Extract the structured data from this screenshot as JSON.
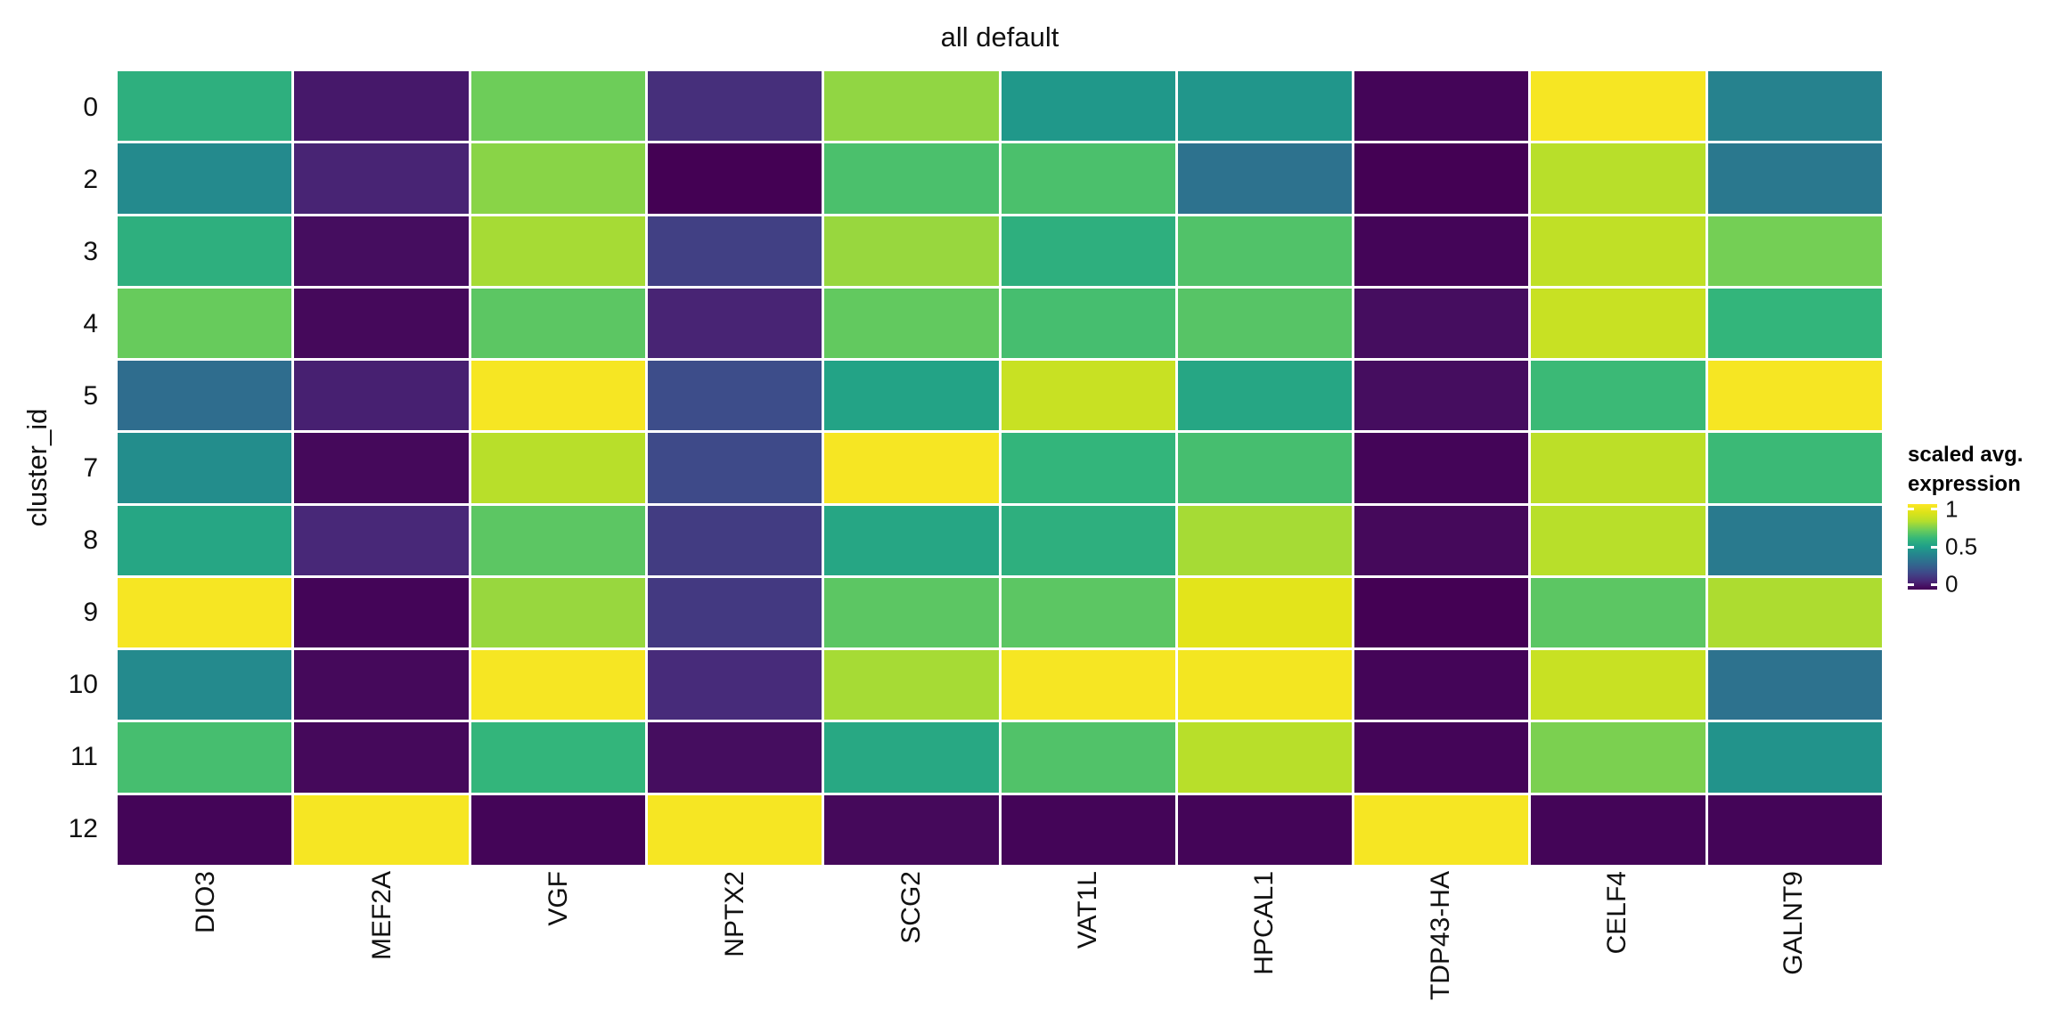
{
  "title": "all default",
  "y_axis": {
    "label": "cluster_id",
    "tick_labels": [
      "0",
      "2",
      "3",
      "4",
      "5",
      "7",
      "8",
      "9",
      "10",
      "11",
      "12"
    ]
  },
  "x_axis": {
    "tick_labels": [
      "DIO3",
      "MEF2A",
      "VGF",
      "NPTX2",
      "SCG2",
      "VAT1L",
      "HPCAL1",
      "TDP43-HA",
      "CELF4",
      "GALNT9"
    ]
  },
  "legend": {
    "title_line1": "scaled avg.",
    "title_line2": "expression",
    "tick_labels": [
      "1",
      "0.5",
      "0"
    ],
    "tick_positions": [
      0.06,
      0.5,
      0.94
    ]
  },
  "colors": {
    "background": "#ffffff",
    "text": "#111111",
    "colormap": "viridis",
    "viridis_anchors": [
      "#440154",
      "#482878",
      "#3e4a89",
      "#31688e",
      "#26828e",
      "#1f9e89",
      "#35b779",
      "#6dcd59",
      "#b4de2c",
      "#dce319",
      "#fde725"
    ]
  },
  "chart_data": {
    "type": "heatmap",
    "title": "all default",
    "xlabel": "",
    "ylabel": "cluster_id",
    "legend_title": "scaled avg. expression",
    "colorscale": "viridis",
    "domain": [
      0,
      1
    ],
    "grid": false,
    "legend_position": "right",
    "columns": [
      "DIO3",
      "MEF2A",
      "VGF",
      "NPTX2",
      "SCG2",
      "VAT1L",
      "HPCAL1",
      "TDP43-HA",
      "CELF4",
      "GALNT9"
    ],
    "rows": [
      "0",
      "2",
      "3",
      "4",
      "5",
      "7",
      "8",
      "9",
      "10",
      "11",
      "12"
    ],
    "values": [
      [
        0.57,
        0.06,
        0.7,
        0.12,
        0.75,
        0.48,
        0.47,
        0.01,
        0.98,
        0.4
      ],
      [
        0.43,
        0.09,
        0.74,
        0.0,
        0.64,
        0.64,
        0.34,
        0.0,
        0.81,
        0.36
      ],
      [
        0.57,
        0.03,
        0.78,
        0.17,
        0.76,
        0.57,
        0.65,
        0.01,
        0.83,
        0.71
      ],
      [
        0.69,
        0.02,
        0.67,
        0.09,
        0.68,
        0.63,
        0.66,
        0.03,
        0.85,
        0.59
      ],
      [
        0.32,
        0.08,
        0.98,
        0.21,
        0.52,
        0.85,
        0.53,
        0.03,
        0.61,
        0.98
      ],
      [
        0.44,
        0.02,
        0.81,
        0.2,
        0.98,
        0.59,
        0.63,
        0.01,
        0.82,
        0.61
      ],
      [
        0.53,
        0.1,
        0.67,
        0.16,
        0.53,
        0.57,
        0.78,
        0.02,
        0.81,
        0.37
      ],
      [
        0.98,
        0.01,
        0.76,
        0.15,
        0.67,
        0.67,
        0.92,
        0.0,
        0.67,
        0.79
      ],
      [
        0.43,
        0.02,
        0.98,
        0.11,
        0.78,
        0.98,
        0.97,
        0.01,
        0.85,
        0.34
      ],
      [
        0.63,
        0.02,
        0.59,
        0.03,
        0.54,
        0.65,
        0.81,
        0.01,
        0.72,
        0.46
      ],
      [
        0.01,
        0.98,
        0.01,
        0.98,
        0.02,
        0.01,
        0.01,
        0.98,
        0.01,
        0.01
      ]
    ]
  }
}
